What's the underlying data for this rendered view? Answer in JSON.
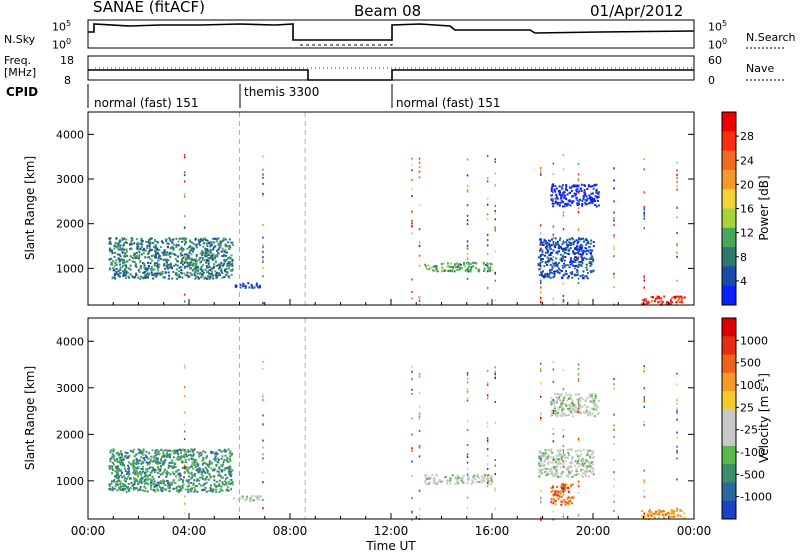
{
  "header": {
    "title": "SANAE (fitACF)",
    "beam": "Beam 08",
    "date": "01/Apr/2012"
  },
  "top_panel": {
    "left_label": "N.Sky",
    "left_ticks": [
      "10^5",
      "10^0"
    ],
    "right_ticks": [
      "10^5",
      "10^0"
    ],
    "right_label": "N.Search"
  },
  "freq_panel": {
    "left_label_1": "Freq.",
    "left_label_2": "[MHz]",
    "left_ticks": [
      "18",
      "8"
    ],
    "right_ticks": [
      "60",
      "0"
    ],
    "right_label": "Nave",
    "cpid_label": "CPID"
  },
  "cpid_segments": [
    {
      "label": "normal (fast) 151",
      "start_h": 0,
      "end_h": 6.0
    },
    {
      "label": "themis 3300",
      "start_h": 6.0,
      "end_h": 8.6
    },
    {
      "label": "normal (fast) 151",
      "start_h": 12.0,
      "end_h": 24
    }
  ],
  "chart_data": [
    {
      "type": "heatmap",
      "name": "power",
      "ylabel": "Slant Range [km]",
      "y_ticks": [
        1000,
        2000,
        3000,
        4000
      ],
      "ylim": [
        180,
        4500
      ],
      "colorbar": {
        "label": "Power [dB]",
        "ticks": [
          "4",
          "8",
          "12",
          "16",
          "20",
          "24",
          "28"
        ],
        "colors": [
          "#0a20ff",
          "#1a4ba8",
          "#2c7a6e",
          "#47a85a",
          "#a8d23a",
          "#f4d33a",
          "#f59a2a",
          "#f06a20",
          "#ff2b0f",
          "#ee0000"
        ]
      },
      "patches": [
        {
          "x": [
            0.8,
            5.7
          ],
          "y": [
            780,
            1700
          ],
          "level": 2
        },
        {
          "x": [
            5.7,
            6.8
          ],
          "y": [
            580,
            700
          ],
          "level": 1
        },
        {
          "x": [
            13.3,
            16.0
          ],
          "y": [
            950,
            1150
          ],
          "level": 3
        },
        {
          "x": [
            17.8,
            20.0
          ],
          "y": [
            800,
            1700
          ],
          "level": 1
        },
        {
          "x": [
            18.3,
            20.2
          ],
          "y": [
            2400,
            2900
          ],
          "level": 0
        },
        {
          "x": [
            21.9,
            23.6
          ],
          "y": [
            200,
            400
          ],
          "level": 8
        }
      ]
    },
    {
      "type": "heatmap",
      "name": "velocity",
      "ylabel": "Slant Range [km]",
      "xlabel": "Time UT",
      "x_ticks": [
        "00:00",
        "04:00",
        "08:00",
        "12:00",
        "16:00",
        "20:00",
        "00:00"
      ],
      "y_ticks": [
        1000,
        2000,
        3000,
        4000
      ],
      "ylim": [
        180,
        4500
      ],
      "colorbar": {
        "label": "Velocity [m s^-1]",
        "ticks": [
          "1000",
          "500",
          "100",
          "25",
          "-25",
          "-100",
          "-500",
          "-1000"
        ],
        "colors": [
          "#1c3fc8",
          "#2a68a0",
          "#3d8f6c",
          "#58b848",
          "#c8c8c8",
          "#c8c8c8",
          "#f7c92e",
          "#f39b26",
          "#ee6218",
          "#e52d10",
          "#dd0000"
        ]
      },
      "patches": [
        {
          "x": [
            0.8,
            5.7
          ],
          "y": [
            780,
            1700
          ],
          "level": 2
        },
        {
          "x": [
            5.7,
            6.8
          ],
          "y": [
            580,
            700
          ],
          "level": 4
        },
        {
          "x": [
            13.3,
            16.0
          ],
          "y": [
            950,
            1150
          ],
          "level": 4
        },
        {
          "x": [
            17.8,
            20.0
          ],
          "y": [
            1100,
            1700
          ],
          "level": 4
        },
        {
          "x": [
            18.3,
            19.2
          ],
          "y": [
            500,
            950
          ],
          "level": 8
        },
        {
          "x": [
            18.3,
            20.2
          ],
          "y": [
            2400,
            2900
          ],
          "level": 4
        },
        {
          "x": [
            21.9,
            23.6
          ],
          "y": [
            200,
            400
          ],
          "level": 7
        }
      ]
    }
  ]
}
